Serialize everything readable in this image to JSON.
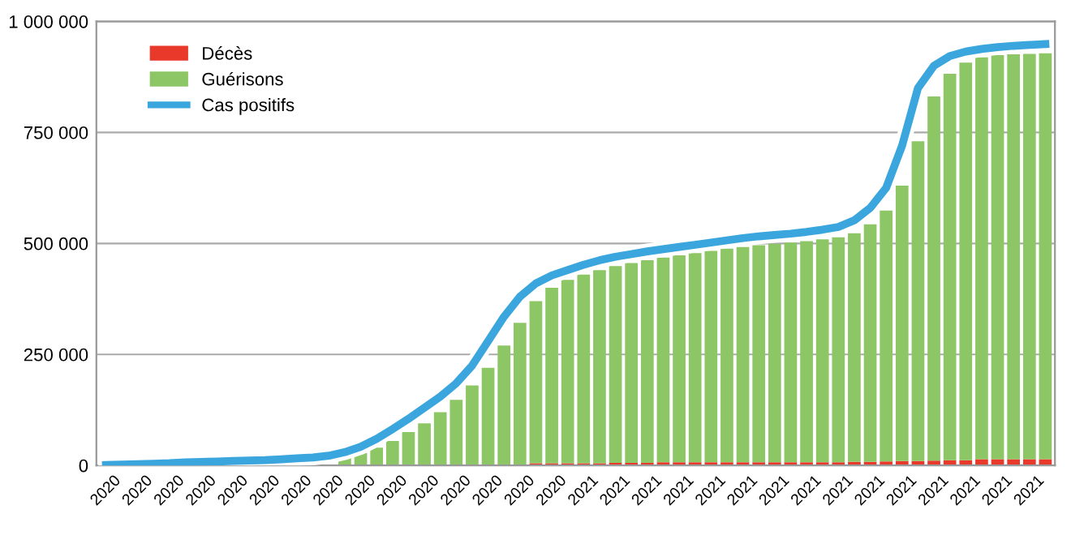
{
  "chart_data": {
    "type": "bar",
    "stacked": true,
    "categories": [
      "2020",
      null,
      "2020",
      null,
      "2020",
      null,
      "2020",
      null,
      "2020",
      null,
      "2020",
      null,
      "2020",
      null,
      "2020",
      null,
      "2020",
      null,
      "2020",
      null,
      "2020",
      null,
      "2020",
      null,
      "2020",
      null,
      "2020",
      null,
      "2020",
      null,
      "2021",
      null,
      "2021",
      null,
      "2021",
      null,
      "2021",
      null,
      "2021",
      null,
      "2021",
      null,
      "2021",
      null,
      "2021",
      null,
      "2021",
      null,
      "2021",
      null,
      "2021",
      null,
      "2021",
      null,
      "2021",
      null,
      "2021",
      null,
      "2021",
      null
    ],
    "series": [
      {
        "name": "Décès",
        "color": "#e8392b",
        "values": [
          0,
          0,
          0,
          0,
          0,
          0,
          0,
          0,
          0,
          0,
          0,
          0,
          0,
          0,
          0,
          0,
          0,
          0,
          0,
          0,
          0,
          0,
          0,
          0,
          0,
          0,
          1000,
          5000,
          5000,
          5000,
          5000,
          5000,
          6000,
          6000,
          6000,
          7000,
          7000,
          7000,
          7000,
          7000,
          7000,
          7000,
          7000,
          7000,
          7000,
          7000,
          7000,
          8000,
          8000,
          9000,
          10000,
          10000,
          11000,
          12000,
          12000,
          14000,
          14000,
          14000,
          14000,
          14000
        ]
      },
      {
        "name": "Guérisons",
        "color": "#8cc665",
        "values": [
          0,
          0,
          0,
          0,
          0,
          0,
          0,
          0,
          0,
          null,
          null,
          null,
          null,
          null,
          null,
          18000,
          28000,
          40000,
          55000,
          75000,
          95000,
          120000,
          148000,
          180000,
          220000,
          270000,
          320000,
          365000,
          395000,
          413000,
          425000,
          435000,
          443000,
          450000,
          456000,
          461000,
          466000,
          471000,
          476000,
          481000,
          485000,
          489000,
          492000,
          495000,
          498000,
          502000,
          507000,
          515000,
          535000,
          565000,
          620000,
          720000,
          820000,
          870000,
          895000,
          905000,
          910000,
          912000,
          913000,
          914000
        ]
      },
      {
        "name": "Cas positifs",
        "type": "line",
        "color": "#3aa6dd",
        "values": [
          1000,
          2000,
          3000,
          4000,
          5000,
          7000,
          8000,
          9000,
          10000,
          11000,
          12000,
          14000,
          16000,
          18000,
          22000,
          30000,
          42000,
          60000,
          82000,
          105000,
          130000,
          155000,
          185000,
          225000,
          280000,
          335000,
          380000,
          410000,
          428000,
          440000,
          452000,
          462000,
          470000,
          476000,
          482000,
          487000,
          492000,
          497000,
          502000,
          507000,
          512000,
          516000,
          519000,
          522000,
          526000,
          531000,
          537000,
          552000,
          580000,
          625000,
          720000,
          850000,
          900000,
          922000,
          932000,
          938000,
          942000,
          945000,
          947000,
          949000
        ]
      }
    ],
    "ylim": [
      0,
      1000000
    ],
    "yticks": [
      0,
      {
        "value": 250000,
        "label": "250 000"
      },
      {
        "value": 500000,
        "label": "500 000"
      },
      {
        "value": 750000,
        "label": "750 000"
      },
      {
        "value": 1000000,
        "label": "1 000 000"
      }
    ],
    "grid": "y",
    "legend": "top left",
    "marker": "none",
    "line_style": "solid"
  }
}
